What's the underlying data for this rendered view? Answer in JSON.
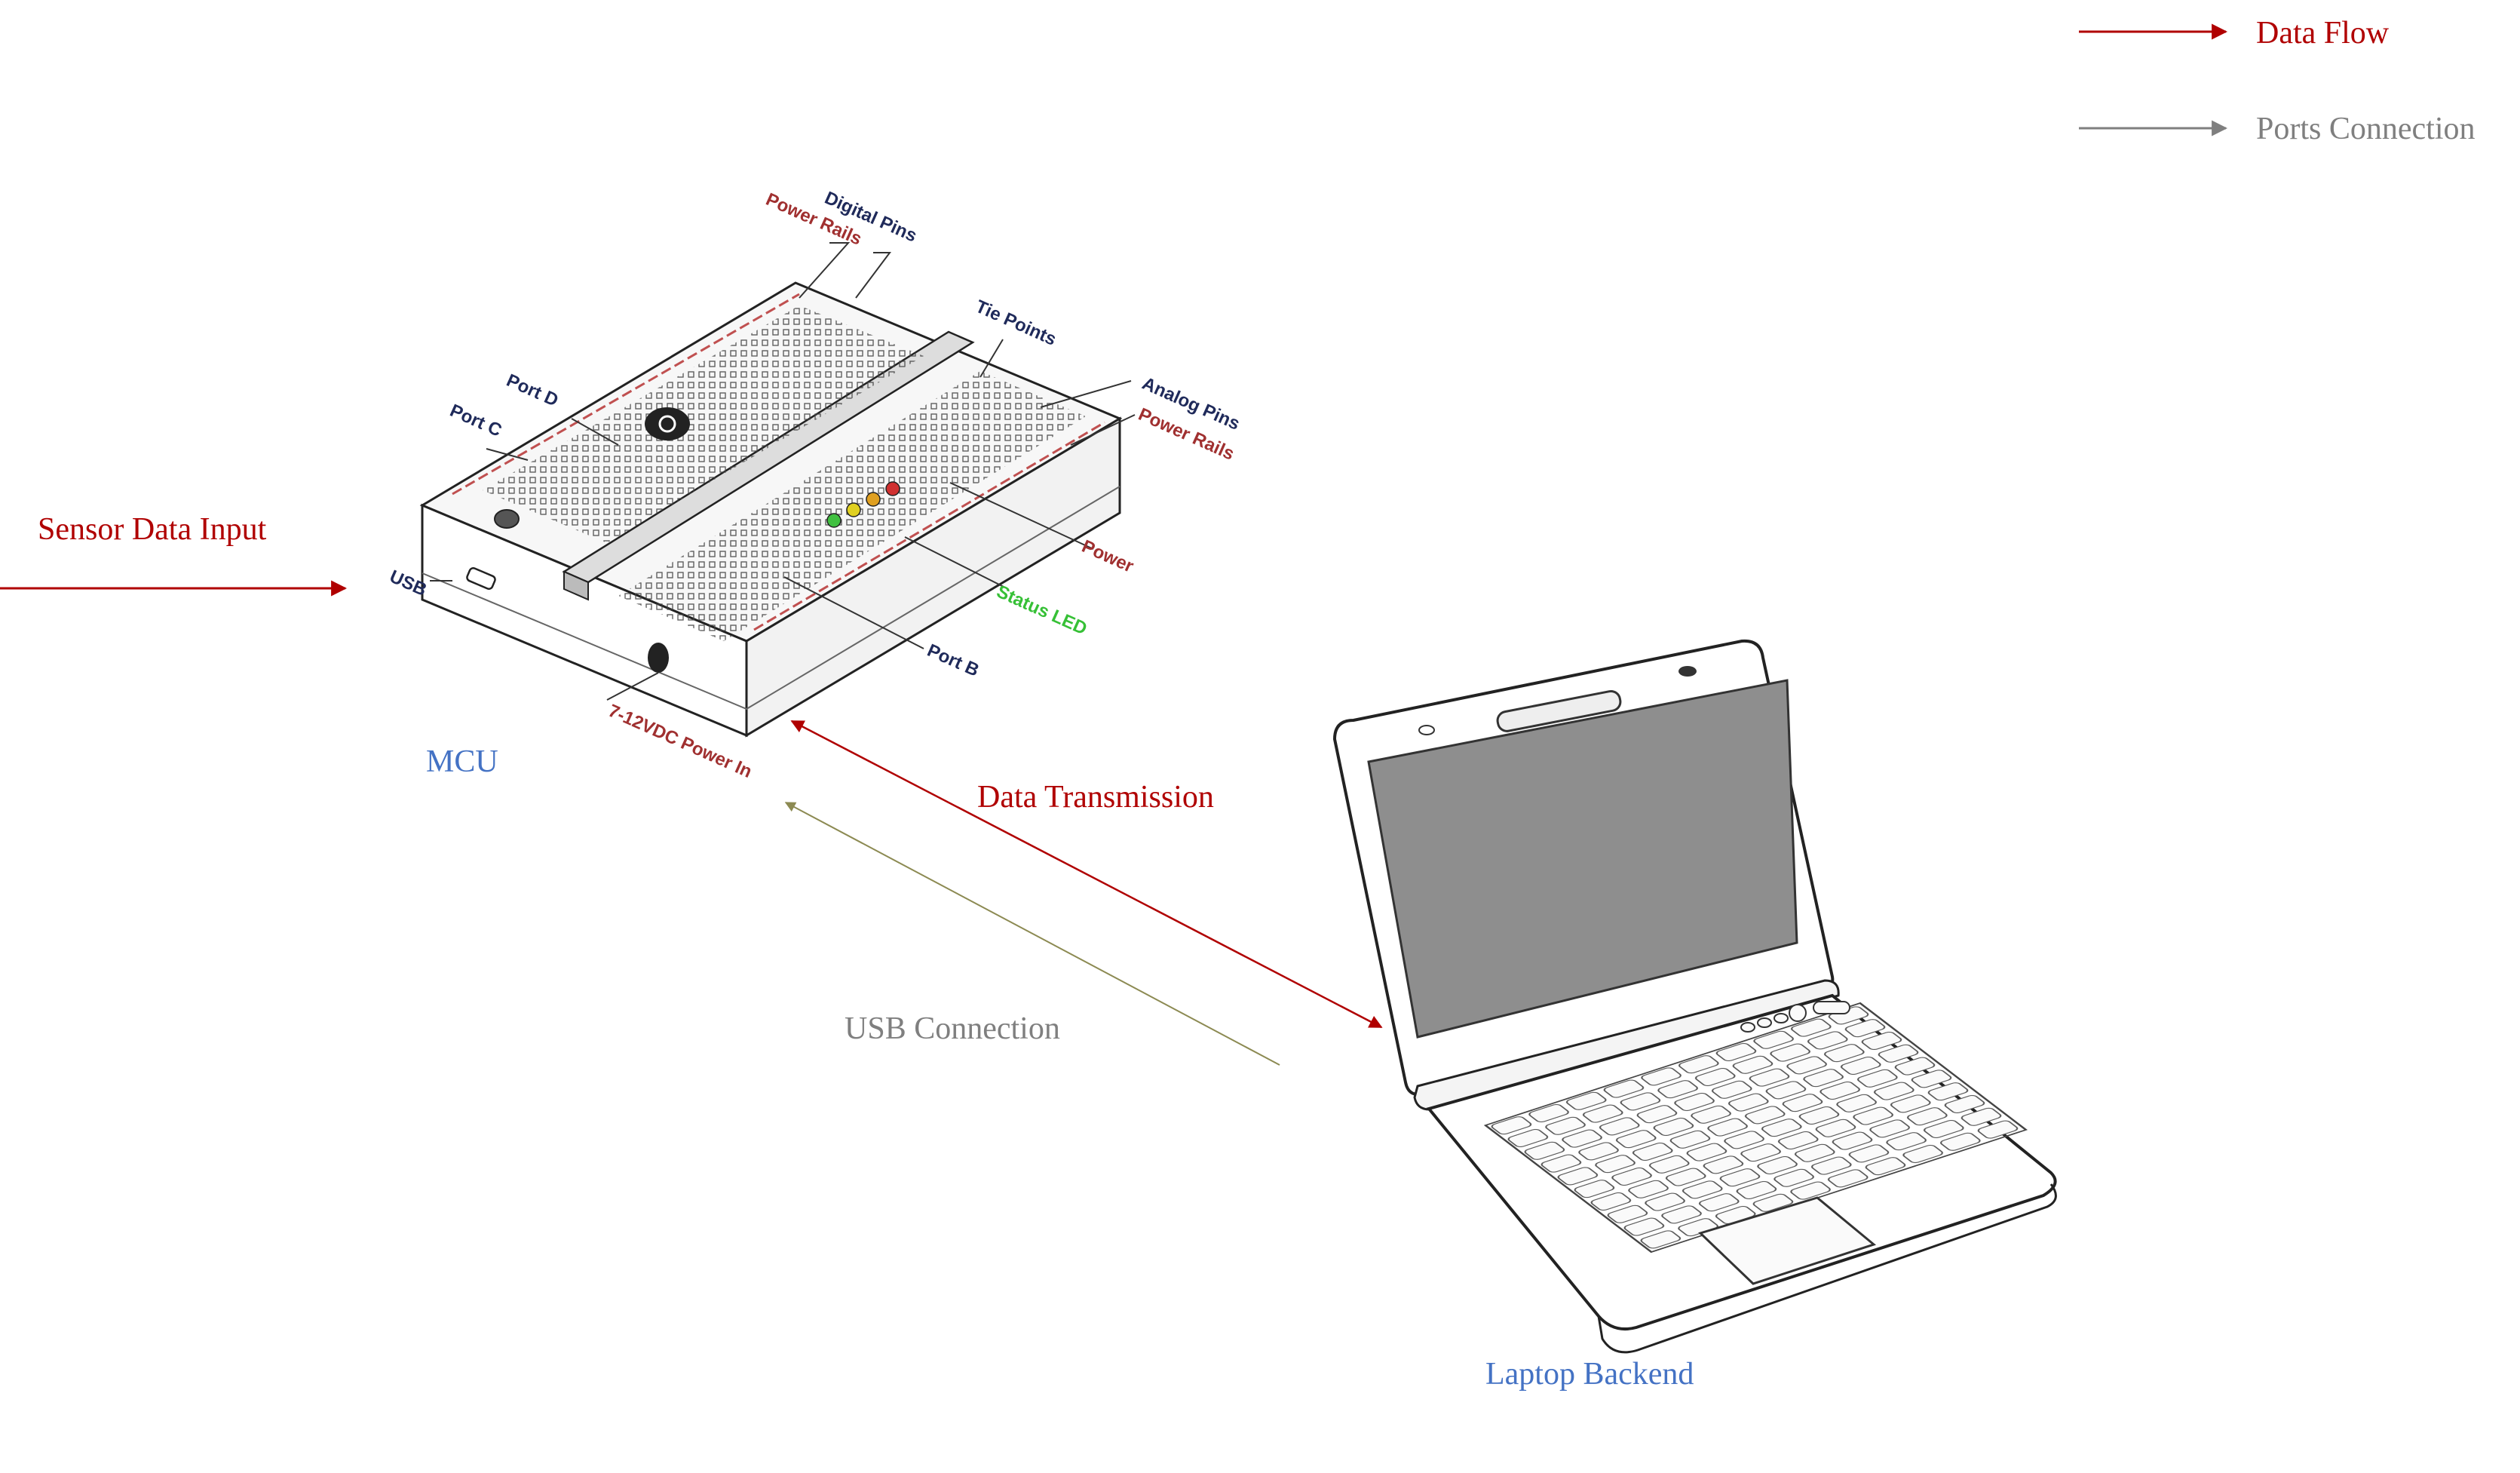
{
  "colors": {
    "data_flow": "#b00000",
    "ports_connection": "#7f7f7f",
    "usb_connection_arrow": "#8c8a52",
    "node_label": "#4472c4",
    "callout_dark": "#1f2a5a",
    "callout_red": "#a03030",
    "callout_green": "#36c036",
    "device_outline": "#222222",
    "screen_fill": "#8e8e8e"
  },
  "legend": {
    "data_flow": "Data Flow",
    "ports_connection": "Ports Connection"
  },
  "flow_labels": {
    "sensor_input": "Sensor Data Input",
    "data_transmission": "Data Transmission",
    "usb_connection": "USB Connection"
  },
  "nodes": {
    "mcu": "MCU",
    "laptop": "Laptop Backend"
  },
  "mcu_callouts": {
    "digital_pins": "Digital Pins",
    "power_rails_top": "Power Rails",
    "tie_points": "Tie Points",
    "port_d": "Port D",
    "port_c": "Port C",
    "analog_pins": "Analog Pins",
    "power_rails_right": "Power Rails",
    "power": "Power",
    "status_led": "Status LED",
    "usb": "USB",
    "port_b": "Port B",
    "power_in": "7-12VDC Power In"
  },
  "icons": {
    "mcu_board": "breadboard-mcu-icon",
    "laptop": "laptop-icon",
    "logo": "board-logo-icon"
  }
}
